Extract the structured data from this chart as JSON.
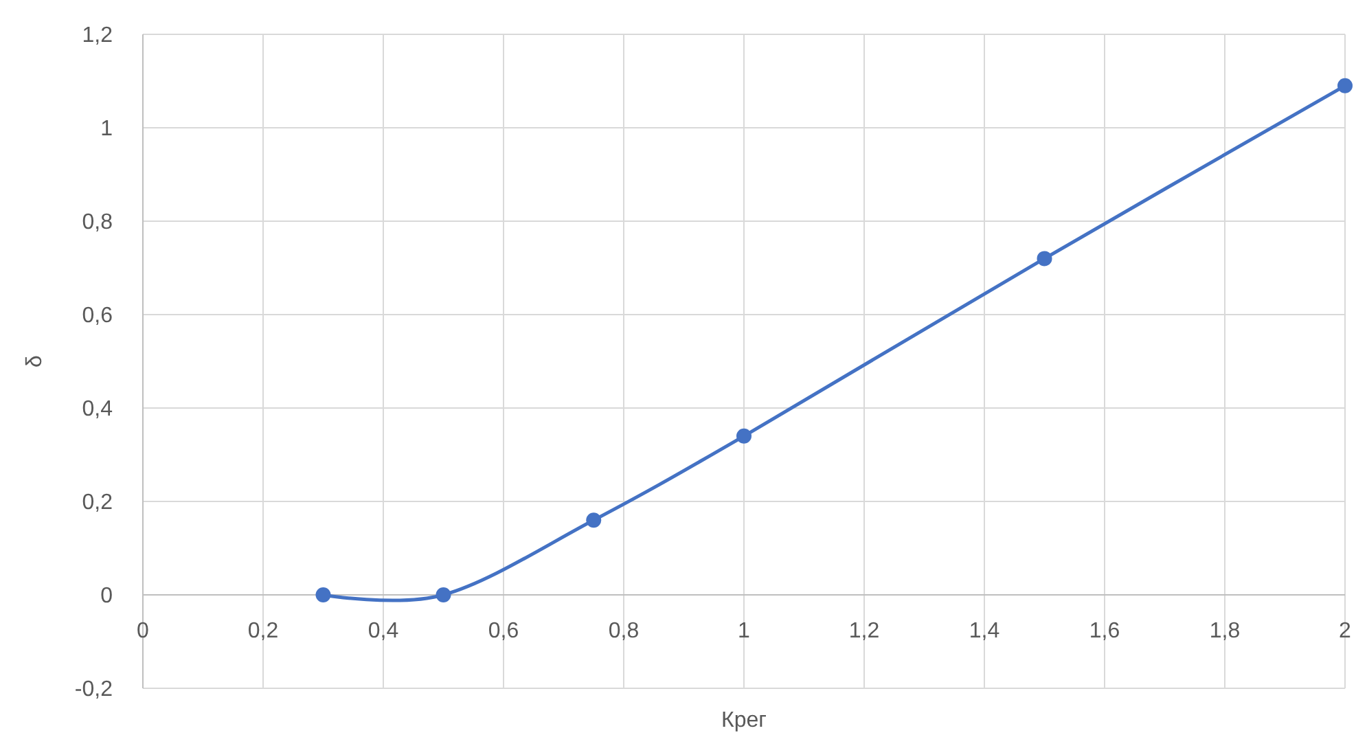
{
  "chart_data": {
    "type": "line",
    "xlabel": "Крег",
    "ylabel": "δ",
    "x": [
      0.3,
      0.5,
      0.75,
      1,
      1.5,
      2
    ],
    "series": [
      {
        "color": "#4472c4",
        "values": [
          0,
          0,
          0.16,
          0.34,
          0.72,
          1.09
        ]
      }
    ],
    "xlim": [
      0,
      2
    ],
    "ylim": [
      -0.2,
      1.2
    ],
    "xticks": [
      0,
      {
        "value": 0.2,
        "label": "0,2"
      },
      {
        "value": 0.4,
        "label": "0,4"
      },
      {
        "value": 0.6,
        "label": "0,6"
      },
      {
        "value": 0.8,
        "label": "0,8"
      },
      1,
      {
        "value": 1.2,
        "label": "1,2"
      },
      {
        "value": 1.4,
        "label": "1,4"
      },
      {
        "value": 1.6,
        "label": "1,6"
      },
      {
        "value": 1.8,
        "label": "1,8"
      },
      2
    ],
    "yticks": [
      {
        "value": -0.2,
        "label": "-0,2"
      },
      0,
      {
        "value": 0.2,
        "label": "0,2"
      },
      {
        "value": 0.4,
        "label": "0,4"
      },
      {
        "value": 0.6,
        "label": "0,6"
      },
      {
        "value": 0.8,
        "label": "0,8"
      },
      1,
      {
        "value": 1.2,
        "label": "1,2"
      }
    ],
    "grid": true,
    "marker": "circle",
    "line_style": "solid"
  }
}
